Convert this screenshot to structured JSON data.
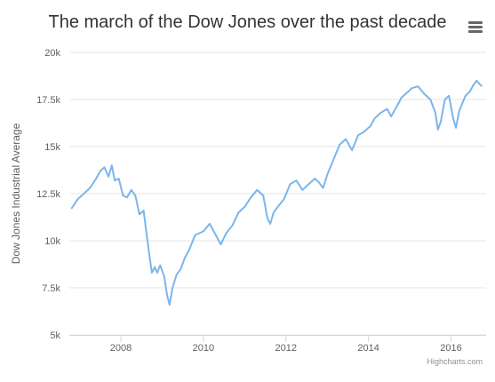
{
  "title": "The march of the Dow Jones over the past decade",
  "credits": "Highcharts.com",
  "menu": {
    "icon": "hamburger-menu-icon"
  },
  "colors": {
    "series": "#7cb5ec",
    "grid": "#e6e6e6",
    "axis_text": "#606060"
  },
  "chart_data": {
    "type": "line",
    "title": "The march of the Dow Jones over the past decade",
    "ylabel": "Dow Jones Industrial Average",
    "xlabel": "",
    "ylim": [
      5000,
      20000
    ],
    "xlim": [
      2006.75,
      2016.85
    ],
    "y_ticks": [
      5000,
      7500,
      10000,
      12500,
      15000,
      17500,
      20000
    ],
    "y_tick_labels": [
      "5k",
      "7.5k",
      "10k",
      "12.5k",
      "15k",
      "17.5k",
      "20k"
    ],
    "x_ticks": [
      2008,
      2010,
      2012,
      2014,
      2016
    ],
    "x_tick_labels": [
      "2008",
      "2010",
      "2012",
      "2014",
      "2016"
    ],
    "grid": true,
    "legend": "none",
    "series": [
      {
        "x": [
          2006.8,
          2006.95,
          2007.1,
          2007.25,
          2007.4,
          2007.5,
          2007.6,
          2007.7,
          2007.78,
          2007.85,
          2007.95,
          2008.05,
          2008.15,
          2008.25,
          2008.35,
          2008.45,
          2008.55,
          2008.62,
          2008.7,
          2008.75,
          2008.82,
          2008.88,
          2008.95,
          2009.05,
          2009.12,
          2009.18,
          2009.25,
          2009.35,
          2009.45,
          2009.55,
          2009.65,
          2009.8,
          2010.0,
          2010.15,
          2010.3,
          2010.42,
          2010.55,
          2010.7,
          2010.85,
          2011.0,
          2011.15,
          2011.3,
          2011.45,
          2011.55,
          2011.62,
          2011.7,
          2011.8,
          2011.95,
          2012.1,
          2012.25,
          2012.4,
          2012.55,
          2012.7,
          2012.8,
          2012.9,
          2013.0,
          2013.15,
          2013.3,
          2013.45,
          2013.6,
          2013.75,
          2013.9,
          2014.05,
          2014.15,
          2014.3,
          2014.45,
          2014.55,
          2014.7,
          2014.8,
          2014.9,
          2015.05,
          2015.2,
          2015.35,
          2015.5,
          2015.62,
          2015.68,
          2015.75,
          2015.85,
          2015.95,
          2016.05,
          2016.12,
          2016.2,
          2016.35,
          2016.45,
          2016.55,
          2016.62,
          2016.7,
          2016.75
        ],
        "values": [
          11700,
          12200,
          12500,
          12800,
          13300,
          13700,
          13900,
          13400,
          14000,
          13200,
          13300,
          12400,
          12300,
          12700,
          12400,
          11400,
          11600,
          10400,
          9100,
          8300,
          8600,
          8300,
          8700,
          8100,
          7100,
          6600,
          7500,
          8200,
          8500,
          9100,
          9500,
          10300,
          10500,
          10900,
          10300,
          9800,
          10400,
          10800,
          11500,
          11800,
          12300,
          12700,
          12400,
          11200,
          10900,
          11500,
          11800,
          12200,
          13000,
          13200,
          12700,
          13000,
          13300,
          13100,
          12800,
          13500,
          14300,
          15100,
          15400,
          14800,
          15600,
          15800,
          16100,
          16500,
          16800,
          17000,
          16600,
          17200,
          17600,
          17800,
          18100,
          18200,
          17800,
          17500,
          16800,
          15900,
          16300,
          17500,
          17700,
          16500,
          16000,
          16900,
          17700,
          17900,
          18300,
          18500,
          18300,
          18200
        ]
      }
    ]
  }
}
